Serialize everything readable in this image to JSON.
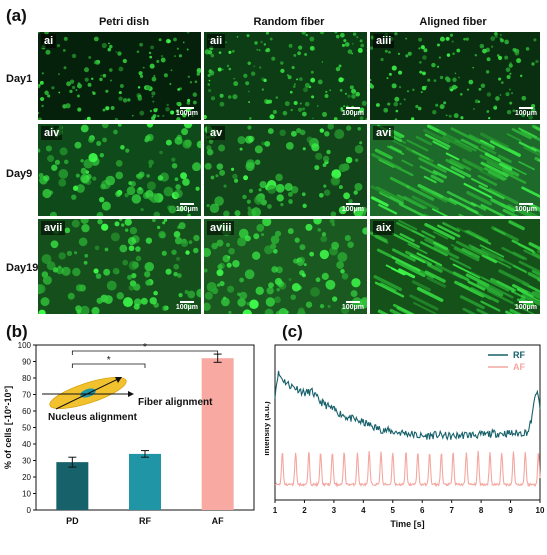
{
  "panel_a": {
    "label": "(a)",
    "columns": [
      "Petri dish",
      "Random fiber",
      "Aligned  fiber"
    ],
    "rows": [
      "Day1",
      "Day9",
      "Day19"
    ],
    "tiles": [
      "ai",
      "aii",
      "aiii",
      "aiv",
      "av",
      "avi",
      "avii",
      "aviii",
      "aix"
    ],
    "scale_text": "100μm"
  },
  "panel_b": {
    "label": "(b)",
    "inset": {
      "fiber_label": "Fiber alignment",
      "nucleus_label": "Nucleus alignment"
    }
  },
  "panel_c": {
    "label": "(c)"
  },
  "chart_data": [
    {
      "type": "bar",
      "categories": [
        "PD",
        "RF",
        "AF"
      ],
      "values": [
        29,
        34,
        92
      ],
      "errors": [
        3,
        2,
        2.5
      ],
      "colors": [
        "#17616a",
        "#1f95a6",
        "#f7a9a2"
      ],
      "ylabel": "% of cells [-10°-10°]",
      "ylim": [
        0,
        100
      ],
      "yticks": [
        0,
        10,
        20,
        30,
        40,
        50,
        60,
        70,
        80,
        90,
        100
      ],
      "significance": [
        "*",
        "*"
      ]
    },
    {
      "type": "line",
      "xlabel": "Time [s]",
      "ylabel": "Intensity (a.u.)",
      "xlim": [
        1,
        10
      ],
      "xticks": [
        1,
        2,
        3,
        4,
        5,
        6,
        7,
        8,
        9,
        10
      ],
      "legend_position": "top-right",
      "series": [
        {
          "name": "RF",
          "color": "#17616a",
          "x": [
            1.0,
            1.1,
            1.25,
            1.5,
            1.75,
            2.0,
            2.25,
            2.5,
            3.0,
            3.5,
            4.0,
            4.5,
            5.0,
            5.5,
            6.0,
            6.5,
            7.0,
            7.5,
            8.0,
            8.5,
            9.0,
            9.3,
            9.6,
            9.75,
            9.85,
            9.95,
            10.0
          ],
          "values": [
            0.68,
            0.82,
            0.78,
            0.74,
            0.72,
            0.69,
            0.7,
            0.64,
            0.58,
            0.53,
            0.5,
            0.46,
            0.44,
            0.43,
            0.41,
            0.42,
            0.41,
            0.42,
            0.42,
            0.43,
            0.43,
            0.43,
            0.44,
            0.55,
            0.7,
            0.66,
            0.58
          ]
        },
        {
          "name": "AF",
          "color": "#f4a7a0",
          "x": [
            1.0,
            1.2,
            1.4,
            1.6,
            1.8,
            2.0,
            2.2,
            2.4,
            2.6,
            2.8,
            3.0,
            3.2,
            3.4,
            3.6,
            3.8,
            4.0,
            4.2,
            4.4,
            4.6,
            4.8,
            5.0,
            5.2,
            5.4,
            5.6,
            5.8,
            6.0,
            6.2,
            6.4,
            6.6,
            6.8,
            7.0,
            7.2,
            7.4,
            7.6,
            7.8,
            8.0,
            8.2,
            8.4,
            8.6,
            8.8,
            9.0,
            9.2,
            9.4,
            9.6,
            9.8,
            10.0
          ],
          "values": [
            0.1,
            0.1,
            0.1,
            0.1,
            0.1,
            0.1,
            0.1,
            0.1,
            0.1,
            0.1,
            0.1,
            0.1,
            0.1,
            0.1,
            0.1,
            0.1,
            0.1,
            0.1,
            0.1,
            0.1,
            0.1,
            0.1,
            0.1,
            0.1,
            0.1,
            0.1,
            0.1,
            0.1,
            0.1,
            0.1,
            0.1,
            0.1,
            0.1,
            0.1,
            0.1,
            0.1,
            0.1,
            0.1,
            0.1,
            0.1,
            0.1,
            0.1,
            0.1,
            0.1,
            0.1,
            0.1
          ],
          "peaks_x": [
            1.25,
            1.7,
            2.15,
            2.55,
            2.95,
            3.35,
            3.8,
            4.2,
            4.6,
            5.0,
            5.45,
            5.85,
            6.25,
            6.65,
            7.05,
            7.5,
            7.9,
            8.3,
            8.7,
            9.1,
            9.5,
            9.95
          ],
          "peak_height": 0.21
        }
      ]
    }
  ]
}
